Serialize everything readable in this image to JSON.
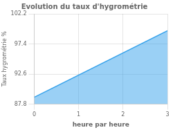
{
  "chart_data": {
    "type": "area",
    "title": "Evolution du taux d'hygrométrie",
    "x_label": "heure par heure",
    "y_label": "Taux hygrométrie %",
    "x": [
      0,
      3
    ],
    "values": [
      88.9,
      99.5
    ],
    "xlim": [
      0,
      3
    ],
    "xticks": [
      0,
      1,
      2,
      3
    ],
    "ylim": [
      87.8,
      102.2
    ],
    "yticks": [
      87.8,
      92.6,
      97.4,
      102.2
    ],
    "grid": true
  }
}
